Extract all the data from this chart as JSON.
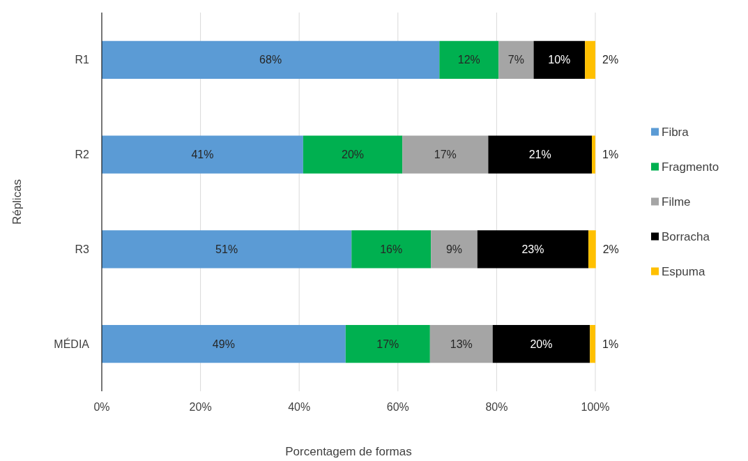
{
  "chart_data": {
    "type": "bar",
    "orientation": "horizontal",
    "stacked": true,
    "xlabel": "Porcentagem de formas",
    "ylabel": "Réplicas",
    "categories": [
      "R1",
      "R2",
      "R3",
      "MÉDIA"
    ],
    "series": [
      {
        "name": "Fibra",
        "color": "#5b9bd5",
        "values": [
          68.4,
          40.8,
          50.6,
          49.4
        ],
        "value_labels": [
          "68%",
          "41%",
          "51%",
          "49%"
        ]
      },
      {
        "name": "Fragmento",
        "color": "#00b050",
        "values": [
          12.0,
          20.1,
          16.1,
          17.1
        ],
        "value_labels": [
          "12%",
          "20%",
          "16%",
          "17%"
        ]
      },
      {
        "name": "Filme",
        "color": "#a5a5a5",
        "values": [
          7.1,
          17.4,
          9.4,
          12.7
        ],
        "value_labels": [
          "7%",
          "17%",
          "9%",
          "13%"
        ]
      },
      {
        "name": "Borracha",
        "color": "#000000",
        "values": [
          10.4,
          21.0,
          22.5,
          19.7
        ],
        "value_labels": [
          "10%",
          "21%",
          "23%",
          "20%"
        ]
      },
      {
        "name": "Espuma",
        "color": "#ffc000",
        "values": [
          2.1,
          0.7,
          1.5,
          1.1
        ],
        "value_labels": [
          "2%",
          "1%",
          "2%",
          "1%"
        ]
      }
    ],
    "xlim": [
      0,
      100
    ],
    "xticks": [
      {
        "value": 0,
        "label": "0%"
      },
      {
        "value": 20,
        "label": "20%"
      },
      {
        "value": 40,
        "label": "40%"
      },
      {
        "value": 60,
        "label": "60%"
      },
      {
        "value": 80,
        "label": "80%"
      },
      {
        "value": 100,
        "label": "100%"
      }
    ],
    "grid": "x",
    "legend": "right"
  }
}
